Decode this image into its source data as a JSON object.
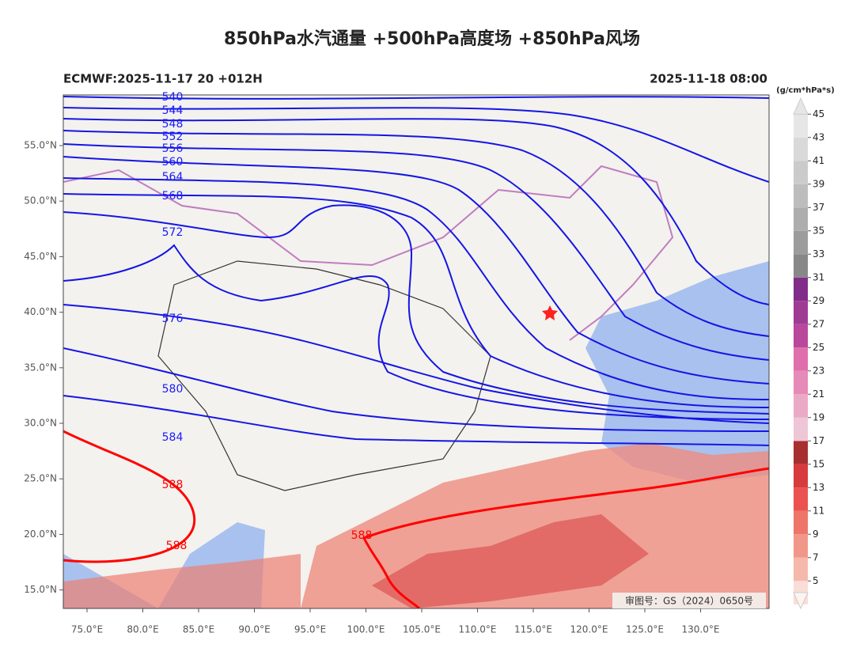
{
  "title": "850hPa水汽通量 +500hPa高度场 +850hPa风场",
  "subtitle_left": "ECMWF:2025-11-17 20 +012H",
  "subtitle_right": "2025-11-18 08:00",
  "colorbar": {
    "unit": "(g/cm*hPa*s)",
    "ticks": [
      5,
      7,
      9,
      11,
      13,
      15,
      17,
      19,
      21,
      23,
      25,
      27,
      29,
      31,
      33,
      35,
      37,
      39,
      41,
      43,
      45
    ],
    "colors": [
      "#f9ddd7",
      "#f5b9ab",
      "#f1978a",
      "#ee7569",
      "#eb5150",
      "#d73b3d",
      "#a82f2f",
      "#eec6d5",
      "#eaaac6",
      "#e68ab8",
      "#df6fac",
      "#b9479c",
      "#9e3c94",
      "#822c8a",
      "#888888",
      "#9c9c9c",
      "#adadad",
      "#bdbdbd",
      "#cbcbcb",
      "#d9d9d9",
      "#e6e6e6"
    ]
  },
  "lat_labels": [
    "55.0°N",
    "50.0°N",
    "45.0°N",
    "40.0°N",
    "35.0°N",
    "30.0°N",
    "25.0°N",
    "20.0°N",
    "15.0°N"
  ],
  "lon_labels": [
    "75.0°E",
    "80.0°E",
    "85.0°E",
    "90.0°E",
    "95.0°E",
    "100.0°E",
    "105.0°E",
    "110.0°E",
    "115.0°E",
    "120.0°E",
    "125.0°E",
    "130.0°E"
  ],
  "contour_labels": [
    {
      "text": "540",
      "color": "#1a1aff"
    },
    {
      "text": "544",
      "color": "#1a1aff"
    },
    {
      "text": "548",
      "color": "#1a1aff"
    },
    {
      "text": "552",
      "color": "#1a1aff"
    },
    {
      "text": "556",
      "color": "#1a1aff"
    },
    {
      "text": "560",
      "color": "#1a1aff"
    },
    {
      "text": "564",
      "color": "#1a1aff"
    },
    {
      "text": "568",
      "color": "#1a1aff"
    },
    {
      "text": "572",
      "color": "#1a1aff"
    },
    {
      "text": "576",
      "color": "#1a1aff"
    },
    {
      "text": "580",
      "color": "#1a1aff"
    },
    {
      "text": "584",
      "color": "#1a1aff"
    },
    {
      "text": "588",
      "color": "#ff0000"
    },
    {
      "text": "588",
      "color": "#ff0000"
    },
    {
      "text": "588",
      "color": "#ff0000"
    }
  ],
  "approval": "审图号：GS（2024）0650号"
}
